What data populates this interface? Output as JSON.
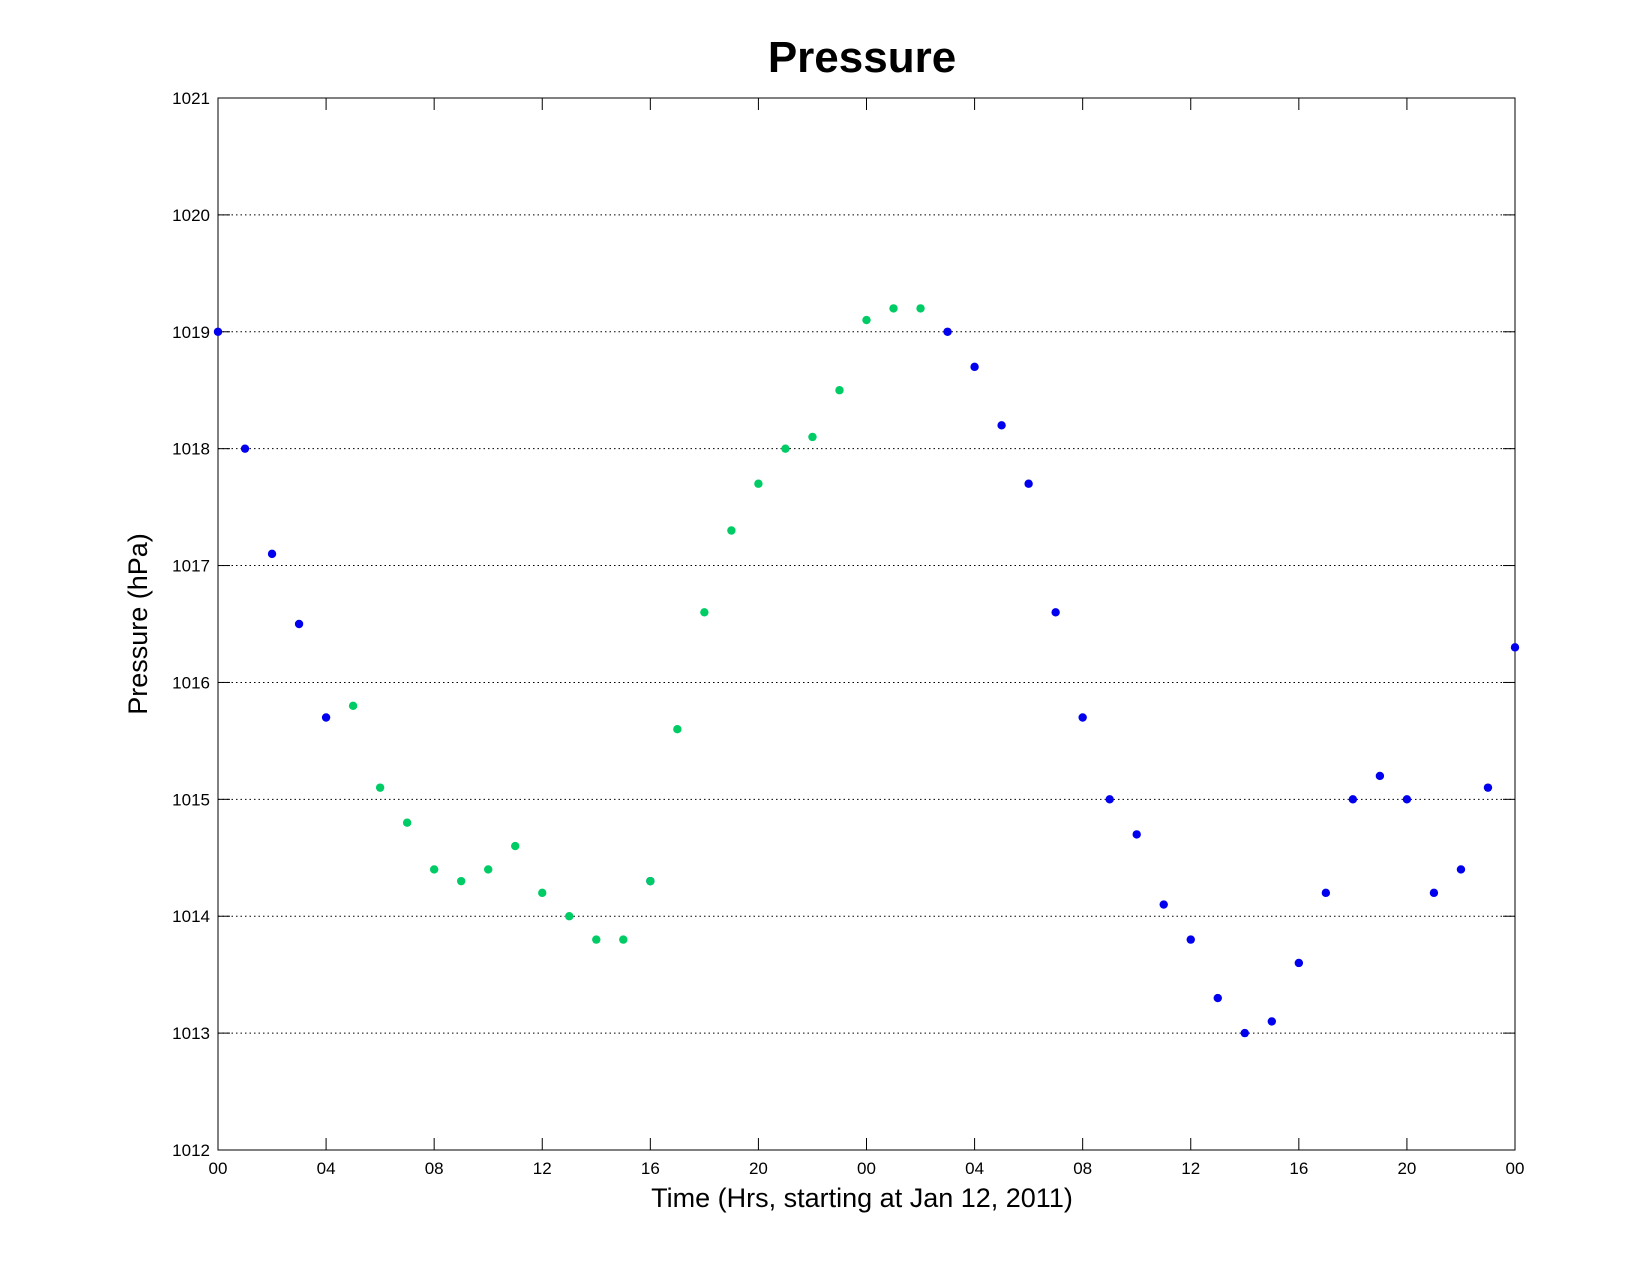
{
  "chart_data": {
    "type": "scatter",
    "title": "Pressure",
    "xlabel": "Time (Hrs, starting at Jan 12, 2011)",
    "ylabel": "Pressure (hPa)",
    "xlim": [
      0,
      48
    ],
    "ylim": [
      1012,
      1021
    ],
    "x_ticks": [
      0,
      4,
      8,
      12,
      16,
      20,
      24,
      28,
      32,
      36,
      40,
      44,
      48
    ],
    "x_tick_labels": [
      "00",
      "04",
      "08",
      "12",
      "16",
      "20",
      "00",
      "04",
      "08",
      "12",
      "16",
      "20",
      "00"
    ],
    "y_ticks": [
      1012,
      1013,
      1014,
      1015,
      1016,
      1017,
      1018,
      1019,
      1020,
      1021
    ],
    "y_tick_labels": [
      "1012",
      "1013",
      "1014",
      "1015",
      "1016",
      "1017",
      "1018",
      "1019",
      "1020",
      "1021"
    ],
    "grid": "y-dotted",
    "legend": "none",
    "series": [
      {
        "color": "#0000ee",
        "x": [
          0,
          1,
          2,
          3,
          4,
          16,
          27,
          28,
          29,
          30,
          31,
          32,
          33,
          34,
          35,
          36,
          37,
          38,
          39,
          40,
          41,
          42,
          43,
          44,
          45,
          46,
          47,
          48
        ],
        "y": [
          1019.0,
          1018.0,
          1017.1,
          1016.5,
          1015.7,
          1014.3,
          1019.0,
          1018.7,
          1018.2,
          1017.7,
          1016.6,
          1015.7,
          1015.0,
          1014.7,
          1014.1,
          1013.8,
          1013.3,
          1013.0,
          1013.1,
          1013.6,
          1014.2,
          1015.0,
          1015.2,
          1015.0,
          1014.2,
          1014.4,
          1015.1,
          1016.3
        ]
      },
      {
        "color": "#00cc66",
        "x": [
          5,
          6,
          7,
          8,
          9,
          10,
          11,
          12,
          13,
          14,
          15,
          16,
          17,
          18,
          19,
          20,
          21,
          22,
          23,
          24,
          25,
          26
        ],
        "y": [
          1015.8,
          1015.1,
          1014.8,
          1014.4,
          1014.3,
          1014.4,
          1014.6,
          1014.2,
          1014.0,
          1013.8,
          1013.8,
          1014.3,
          1015.6,
          1016.6,
          1017.3,
          1017.7,
          1018.0,
          1018.1,
          1018.5,
          1019.1,
          1019.2,
          1019.2
        ]
      }
    ]
  }
}
